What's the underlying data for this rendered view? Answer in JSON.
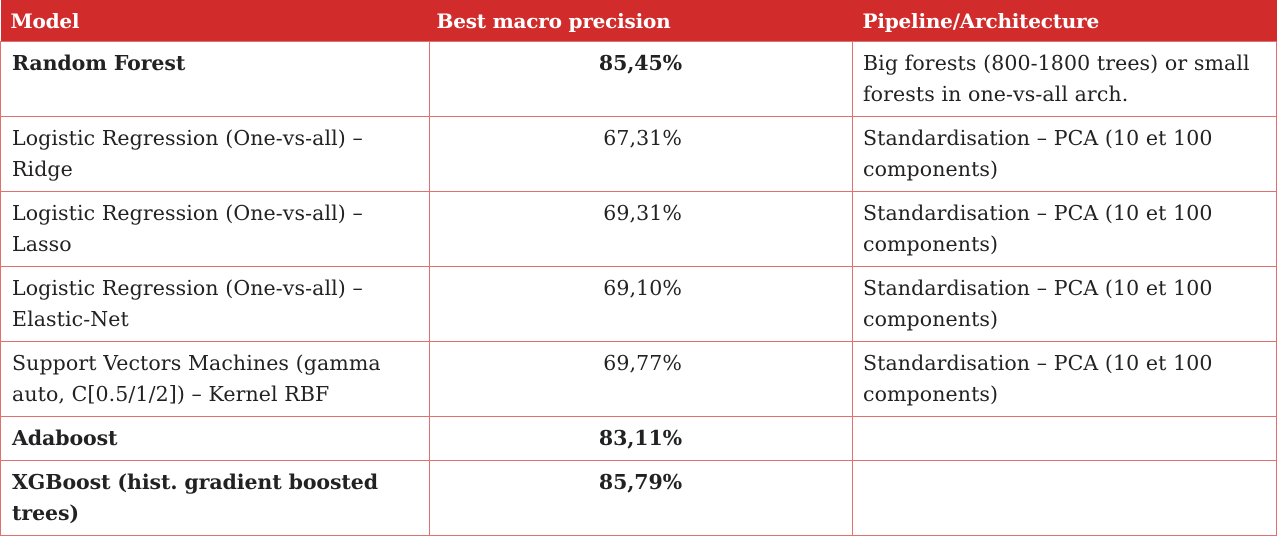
{
  "table": {
    "headers": {
      "model": "Model",
      "precision": "Best macro precision",
      "pipeline": "Pipeline/Architecture"
    },
    "rows": [
      {
        "model": "Random Forest",
        "precision": "85,45%",
        "pipeline": "Big forests (800-1800 trees) or small forests in one-vs-all arch.",
        "bold": true
      },
      {
        "model": "Logistic Regression (One-vs-all) – Ridge",
        "precision": "67,31%",
        "pipeline": "Standardisation – PCA (10 et 100 components)",
        "bold": false
      },
      {
        "model": "Logistic Regression (One-vs-all) – Lasso",
        "precision": "69,31%",
        "pipeline": "Standardisation – PCA (10 et 100 components)",
        "bold": false
      },
      {
        "model": "Logistic Regression (One-vs-all) – Elastic-Net",
        "precision": "69,10%",
        "pipeline": "Standardisation – PCA (10 et 100 components)",
        "bold": false
      },
      {
        "model": "Support Vectors Machines (gamma auto, C[0.5/1/2]) – Kernel RBF",
        "precision": "69,77%",
        "pipeline": "Standardisation – PCA (10 et 100 components)",
        "bold": false
      },
      {
        "model": "Adaboost",
        "precision": "83,11%",
        "pipeline": "",
        "bold": true
      },
      {
        "model": "XGBoost (hist. gradient boosted trees)",
        "precision": "85,79%",
        "pipeline": "",
        "bold": true
      }
    ]
  },
  "colors": {
    "header_bg": "#d22b2b",
    "border": "#e07070"
  }
}
